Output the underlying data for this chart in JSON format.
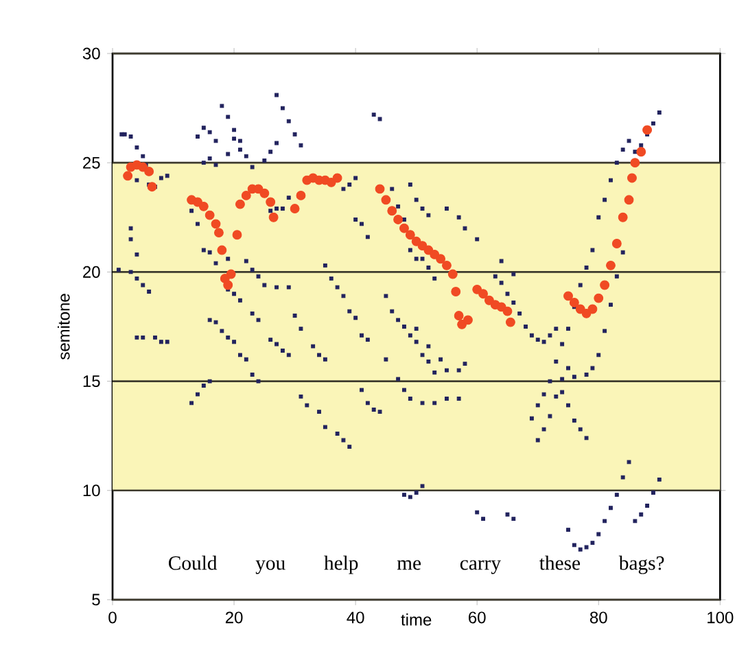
{
  "chart_data": {
    "type": "scatter",
    "xlabel": "time",
    "ylabel": "semitone",
    "xlim": [
      0,
      100
    ],
    "xticks": [
      0,
      20,
      40,
      60,
      80,
      100
    ],
    "ylim": [
      5,
      30
    ],
    "yticks": [
      5,
      10,
      15,
      20,
      25,
      30
    ],
    "grid": "y",
    "bands": [
      {
        "axis": "y",
        "from": 10,
        "to": 25,
        "color": "#faf5b8"
      }
    ],
    "annotations": [
      "Could you help me carry these bags?"
    ],
    "series": [
      {
        "color": "#22235e",
        "marker": "square",
        "x": [
          1.5,
          2,
          3,
          4,
          5,
          5.5,
          4,
          6,
          7,
          8,
          9,
          1,
          3,
          4,
          5,
          6,
          4,
          5,
          7,
          8,
          9,
          3,
          3,
          4,
          14,
          15,
          16,
          17,
          15,
          16,
          17,
          20,
          21,
          22,
          23,
          19,
          18,
          19,
          20,
          21,
          27,
          28,
          29,
          30,
          31,
          26,
          27,
          25,
          13,
          14,
          15,
          16,
          17,
          19,
          16,
          17,
          18,
          19,
          20,
          21,
          22,
          23,
          24,
          13,
          14,
          15,
          16,
          19,
          20,
          21,
          23,
          24,
          26,
          27,
          28,
          29,
          22,
          23,
          24,
          25,
          27,
          29,
          30,
          31,
          33,
          34,
          35,
          31,
          32,
          34,
          35,
          37,
          38,
          39,
          26,
          27,
          28,
          29,
          38,
          39,
          40,
          40,
          41,
          42,
          35,
          36,
          37,
          38,
          39,
          40,
          41,
          42,
          43,
          44,
          46,
          47,
          48,
          49,
          50,
          51,
          52,
          53,
          49,
          50,
          51,
          52,
          55,
          57,
          58,
          60,
          45,
          46,
          47,
          48,
          49,
          50,
          51,
          52,
          53,
          45,
          47,
          48,
          49,
          51,
          53,
          55,
          57,
          50,
          52,
          54,
          55,
          57,
          58,
          41,
          42,
          43,
          44,
          48,
          49,
          50,
          51,
          63,
          64,
          65,
          66,
          67,
          68,
          69,
          70,
          71,
          72,
          73,
          64,
          66,
          69,
          70,
          71,
          72,
          73,
          74,
          75,
          76,
          77,
          78,
          79,
          80,
          81,
          82,
          83,
          84,
          85,
          70,
          71,
          72,
          73,
          74,
          75,
          74,
          75,
          76,
          77,
          78,
          76,
          78,
          79,
          80,
          81,
          82,
          83,
          84,
          86,
          87,
          88,
          89,
          90,
          60,
          61,
          65,
          66,
          75,
          76,
          77,
          78,
          79,
          80,
          81,
          82,
          83,
          84,
          85,
          86,
          87,
          88,
          89,
          90
        ],
        "values": [
          26.3,
          26.3,
          26.2,
          25.7,
          25.3,
          24.9,
          24.2,
          24.0,
          23.9,
          24.3,
          24.4,
          20.1,
          20.0,
          19.7,
          19.4,
          19.1,
          17.0,
          17.0,
          17.0,
          16.8,
          16.8,
          22.0,
          21.5,
          20.8,
          26.2,
          26.6,
          26.4,
          26.0,
          25.0,
          25.2,
          24.9,
          26.1,
          25.6,
          25.3,
          24.8,
          25.4,
          27.6,
          27.1,
          26.5,
          26.0,
          28.1,
          27.5,
          26.9,
          26.3,
          25.8,
          25.5,
          25.9,
          25.1,
          22.8,
          22.2,
          21.0,
          20.9,
          20.4,
          20.6,
          17.8,
          17.7,
          17.3,
          17.0,
          16.8,
          16.2,
          16.0,
          15.3,
          15.0,
          14.0,
          14.4,
          14.8,
          15.0,
          19.2,
          19.0,
          18.7,
          18.1,
          17.8,
          16.9,
          16.7,
          16.4,
          16.2,
          20.5,
          20.1,
          19.8,
          19.4,
          19.3,
          19.3,
          18.0,
          17.4,
          16.6,
          16.2,
          16.0,
          14.3,
          13.9,
          13.6,
          12.9,
          12.6,
          12.3,
          12.0,
          22.8,
          22.9,
          22.9,
          23.4,
          23.8,
          24.0,
          24.3,
          22.4,
          22.2,
          21.6,
          20.3,
          19.7,
          19.3,
          18.9,
          18.2,
          17.9,
          17.1,
          16.9,
          27.2,
          27.0,
          23.8,
          23.0,
          22.4,
          21.0,
          20.6,
          20.6,
          20.2,
          19.7,
          24.0,
          23.3,
          22.9,
          22.6,
          22.9,
          22.5,
          22.0,
          21.5,
          18.9,
          18.2,
          17.8,
          17.5,
          17.1,
          16.8,
          16.2,
          15.9,
          15.4,
          16.0,
          15.1,
          14.6,
          14.2,
          14.0,
          14.0,
          14.2,
          14.2,
          17.4,
          16.6,
          16.0,
          15.5,
          15.5,
          15.8,
          14.6,
          14.0,
          13.7,
          13.6,
          9.8,
          9.7,
          9.9,
          10.2,
          19.8,
          19.5,
          19.0,
          18.6,
          18.1,
          17.5,
          17.1,
          16.9,
          16.8,
          17.1,
          17.4,
          20.5,
          19.9,
          13.3,
          13.9,
          14.4,
          15.0,
          15.9,
          16.7,
          17.4,
          18.4,
          19.4,
          20.2,
          21.0,
          22.5,
          23.3,
          24.2,
          25.0,
          25.6,
          26.0,
          12.3,
          12.8,
          13.4,
          14.3,
          15.1,
          15.6,
          14.5,
          13.9,
          13.2,
          12.8,
          12.4,
          15.2,
          15.3,
          15.6,
          16.2,
          17.3,
          18.5,
          19.8,
          20.9,
          25.5,
          25.8,
          26.3,
          26.8,
          27.3,
          9.0,
          8.7,
          8.9,
          8.7,
          8.2,
          7.5,
          7.3,
          7.4,
          7.6,
          8.0,
          8.6,
          9.2,
          9.8,
          10.6,
          11.3,
          8.6,
          8.9,
          9.3,
          9.9,
          10.5
        ]
      },
      {
        "color": "#f04a23",
        "marker": "circle",
        "x": [
          2.5,
          3,
          4,
          5,
          6,
          6.5,
          13,
          14,
          15,
          16,
          17,
          17.5,
          18,
          18.5,
          19,
          19.5,
          20.5,
          21,
          22,
          23,
          24,
          25,
          26,
          26.5,
          30,
          31,
          32,
          33,
          34,
          35,
          36,
          37,
          44,
          45,
          46,
          47,
          48,
          49,
          50,
          51,
          52,
          53,
          54,
          55,
          56,
          56.5,
          57,
          57.5,
          58.5,
          60,
          61,
          62,
          63,
          64,
          65,
          65.5,
          75,
          76,
          77,
          78,
          79,
          80,
          81,
          82,
          83,
          84,
          85,
          85.5,
          86,
          87,
          88
        ],
        "values": [
          24.4,
          24.8,
          24.9,
          24.8,
          24.6,
          23.9,
          23.3,
          23.2,
          23.0,
          22.6,
          22.2,
          21.8,
          21.0,
          19.7,
          19.4,
          19.9,
          21.7,
          23.1,
          23.5,
          23.8,
          23.8,
          23.6,
          23.2,
          22.5,
          22.9,
          23.5,
          24.2,
          24.3,
          24.2,
          24.2,
          24.1,
          24.3,
          23.8,
          23.3,
          22.8,
          22.4,
          22.0,
          21.7,
          21.4,
          21.2,
          21.0,
          20.8,
          20.6,
          20.3,
          19.9,
          19.1,
          18.0,
          17.6,
          17.8,
          19.2,
          19.0,
          18.7,
          18.5,
          18.4,
          18.2,
          17.7,
          18.9,
          18.6,
          18.3,
          18.1,
          18.3,
          18.8,
          19.4,
          20.3,
          21.3,
          22.5,
          23.3,
          24.3,
          25.0,
          25.5,
          26.5
        ]
      }
    ]
  }
}
